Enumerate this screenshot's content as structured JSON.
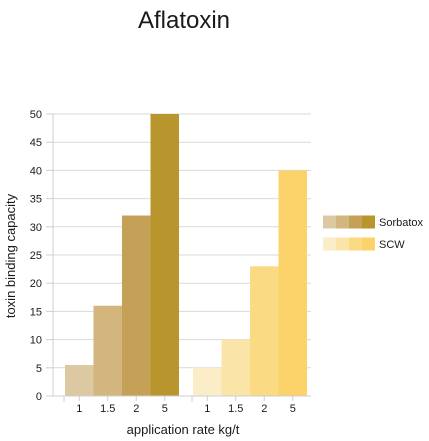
{
  "chart_data": {
    "type": "bar",
    "title": "Aflatoxin",
    "xlabel": "application rate kg/t",
    "ylabel": "toxin binding capacity",
    "ylim": [
      0,
      50
    ],
    "yticks": [
      0,
      5,
      10,
      15,
      20,
      25,
      30,
      35,
      40,
      45,
      50
    ],
    "grid": true,
    "legend_position": "right",
    "categories": [
      "1",
      "1.5",
      "2",
      "5"
    ],
    "series": [
      {
        "name": "Sorbatox",
        "values": [
          5.5,
          16,
          32,
          50
        ],
        "colors": [
          "#dcc9a2",
          "#d2b67d",
          "#c5a158",
          "#b9952e"
        ]
      },
      {
        "name": "SCW",
        "values": [
          5,
          10,
          23,
          40
        ],
        "colors": [
          "#fbedc7",
          "#fae4a7",
          "#fbda84",
          "#fbd36a"
        ]
      }
    ]
  }
}
